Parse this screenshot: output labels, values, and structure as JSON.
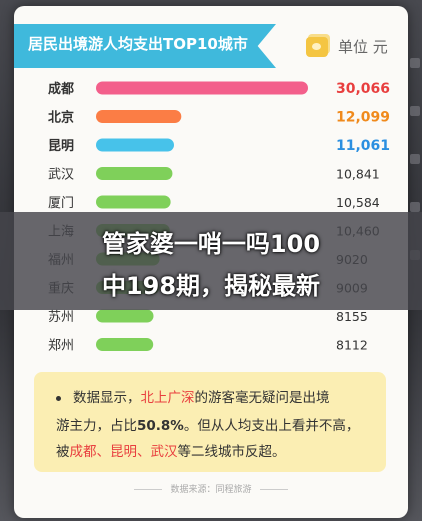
{
  "title": "居民出境游人均支出TOP10城市",
  "unit": "单位 元",
  "chart_data": {
    "type": "bar",
    "orientation": "horizontal",
    "title": "居民出境游人均支出TOP10城市",
    "categories": [
      "成都",
      "北京",
      "昆明",
      "武汉",
      "厦门",
      "上海",
      "福州",
      "重庆",
      "苏州",
      "郑州"
    ],
    "value_labels": [
      "30,066",
      "12,099",
      "11,061",
      "10,841",
      "10,584",
      "10,460",
      "9020",
      "9009",
      "8155",
      "8112"
    ],
    "values": [
      30066,
      12099,
      11061,
      10841,
      10584,
      10460,
      9020,
      9009,
      8155,
      8112
    ],
    "bar_colors": [
      "#f35f8b",
      "#fb7d45",
      "#47c2ea",
      "#7fd05a",
      "#7fd05a",
      "#7fd05a",
      "#7fd05a",
      "#7fd05a",
      "#7fd05a",
      "#7fd05a"
    ],
    "highlight_top": 3,
    "label_colors": [
      "#e83e3e",
      "#f08a1c",
      "#2b8fe0"
    ],
    "xlim": [
      0,
      30066
    ]
  },
  "note": {
    "line1_a": "数据显示，",
    "line1_b": "北上广深",
    "line1_c": "的游客毫无疑问是出境",
    "line2_a": "游主力，占比",
    "line2_b": "50.8%",
    "line2_c": "。但从人均支出上看并不高，",
    "line3_a": "被",
    "line3_b": "成都、昆明、武汉",
    "line3_c": "等二线城市反超。"
  },
  "source": "数据来源：同程旅游",
  "banner": {
    "line1": "管家婆一哨一吗100",
    "line2": "中198期，揭秘最新"
  }
}
